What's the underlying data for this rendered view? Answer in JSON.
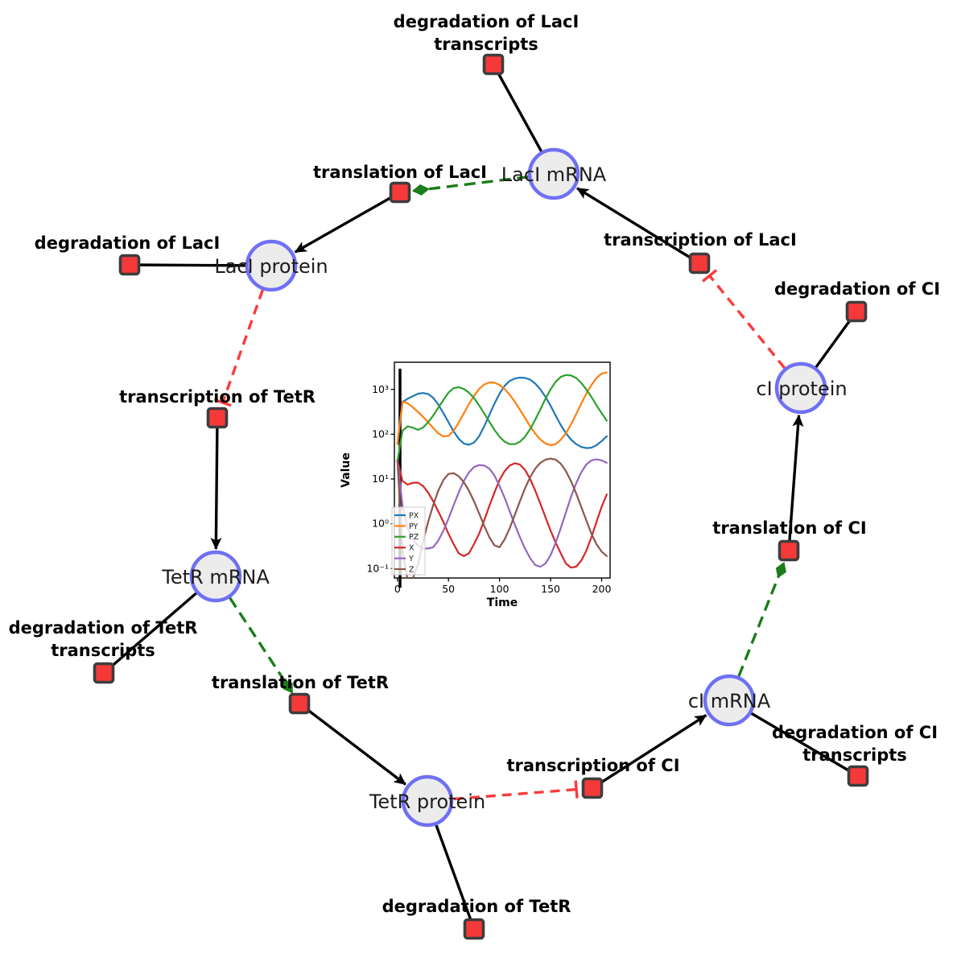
{
  "diagram": {
    "species": [
      {
        "label": "LacI mRNA"
      },
      {
        "label": "LacI protein"
      },
      {
        "label": "TetR mRNA"
      },
      {
        "label": "TetR protein"
      },
      {
        "label": "cI mRNA"
      },
      {
        "label": "cI protein"
      }
    ],
    "reactions": [
      {
        "lines": [
          "degradation of LacI",
          "transcripts"
        ]
      },
      {
        "lines": [
          "translation of LacI"
        ]
      },
      {
        "lines": [
          "degradation of LacI"
        ]
      },
      {
        "lines": [
          "transcription of TetR"
        ]
      },
      {
        "lines": [
          "degradation of TetR",
          "transcripts"
        ]
      },
      {
        "lines": [
          "translation of TetR"
        ]
      },
      {
        "lines": [
          "degradation of TetR"
        ]
      },
      {
        "lines": [
          "transcription of CI"
        ]
      },
      {
        "lines": [
          "degradation of CI",
          "transcripts"
        ]
      },
      {
        "lines": [
          "translation of CI"
        ]
      },
      {
        "lines": [
          "degradation of CI"
        ]
      },
      {
        "lines": [
          "transcription of LacI"
        ]
      }
    ],
    "edges": [
      {
        "from": "LacI mRNA",
        "to": "degradation of LacI transcripts",
        "type": "reactant"
      },
      {
        "from": "LacI mRNA",
        "to": "translation of LacI",
        "type": "modifier"
      },
      {
        "from": "translation of LacI",
        "to": "LacI protein",
        "type": "product"
      },
      {
        "from": "LacI protein",
        "to": "degradation of LacI",
        "type": "reactant"
      },
      {
        "from": "LacI protein",
        "to": "transcription of TetR",
        "type": "inhibition"
      },
      {
        "from": "transcription of TetR",
        "to": "TetR mRNA",
        "type": "product"
      },
      {
        "from": "TetR mRNA",
        "to": "degradation of TetR transcripts",
        "type": "reactant"
      },
      {
        "from": "TetR mRNA",
        "to": "translation of TetR",
        "type": "modifier"
      },
      {
        "from": "translation of TetR",
        "to": "TetR protein",
        "type": "product"
      },
      {
        "from": "TetR protein",
        "to": "degradation of TetR",
        "type": "reactant"
      },
      {
        "from": "TetR protein",
        "to": "transcription of CI",
        "type": "inhibition"
      },
      {
        "from": "transcription of CI",
        "to": "cI mRNA",
        "type": "product"
      },
      {
        "from": "cI mRNA",
        "to": "degradation of CI transcripts",
        "type": "reactant"
      },
      {
        "from": "cI mRNA",
        "to": "translation of CI",
        "type": "modifier"
      },
      {
        "from": "translation of CI",
        "to": "cI protein",
        "type": "product"
      },
      {
        "from": "cI protein",
        "to": "degradation of CI",
        "type": "reactant"
      },
      {
        "from": "cI protein",
        "to": "transcription of LacI",
        "type": "inhibition"
      },
      {
        "from": "transcription of LacI",
        "to": "LacI mRNA",
        "type": "product"
      }
    ],
    "colors": {
      "species_fill": "#ececec",
      "species_border": "#6f70f4",
      "reaction_fill": "#f53939",
      "reaction_border": "#3d3d3d",
      "reactant_product_edge": "#000000",
      "modifier_edge": "#1a7d1a",
      "inhibition_edge": "#fb3b3b"
    }
  },
  "chart_data": {
    "type": "line",
    "title": "",
    "xlabel": "Time",
    "ylabel": "Value",
    "grid": false,
    "y_scale": "log",
    "legend_position": "lower left",
    "x_ticks": [
      0,
      50,
      100,
      150,
      200
    ],
    "x_tick_labels": [
      "0",
      "50",
      "100",
      "150",
      "200"
    ],
    "y_tick_labels": [
      "10³",
      "10²",
      "10¹",
      "10⁰",
      "10⁻¹"
    ],
    "x_range": [
      -3,
      208.3
    ],
    "y_log_range": [
      -1.21,
      3.606
    ],
    "annotation_vline_x": 3,
    "x": [
      0,
      5,
      10,
      15,
      20,
      25,
      30,
      35,
      40,
      45,
      50,
      55,
      60,
      65,
      70,
      75,
      80,
      85,
      90,
      95,
      100,
      105,
      110,
      115,
      120,
      125,
      130,
      135,
      140,
      145,
      150,
      155,
      160,
      165,
      170,
      175,
      180,
      185,
      190,
      195,
      200,
      205
    ],
    "series": [
      {
        "name": "PX",
        "color": "#1f77b4",
        "values": [
          60,
          520,
          620,
          700,
          800,
          830,
          790,
          650,
          460,
          295,
          185,
          116,
          79,
          62,
          58,
          65,
          90,
          150,
          270,
          480,
          800,
          1200,
          1550,
          1750,
          1830,
          1800,
          1650,
          1350,
          1000,
          680,
          430,
          260,
          160,
          105,
          76,
          60,
          52,
          49,
          50,
          57,
          70,
          90
        ]
      },
      {
        "name": "PY",
        "color": "#ff7f0e",
        "values": [
          60,
          540,
          490,
          400,
          315,
          245,
          185,
          138,
          105,
          89,
          92,
          120,
          180,
          290,
          470,
          720,
          1020,
          1290,
          1430,
          1410,
          1260,
          1020,
          760,
          530,
          350,
          230,
          150,
          103,
          76,
          62,
          57,
          60,
          75,
          105,
          165,
          280,
          480,
          800,
          1250,
          1800,
          2250,
          2400
        ]
      },
      {
        "name": "PZ",
        "color": "#2ca02c",
        "values": [
          25,
          120,
          150,
          140,
          125,
          140,
          185,
          260,
          390,
          580,
          850,
          1070,
          1120,
          1020,
          850,
          640,
          440,
          290,
          190,
          125,
          88,
          68,
          60,
          60,
          68,
          88,
          130,
          210,
          360,
          620,
          1000,
          1480,
          1900,
          2100,
          2050,
          1800,
          1400,
          1000,
          680,
          440,
          295,
          200
        ]
      },
      {
        "name": "X",
        "color": "#d62728",
        "values": [
          26,
          9,
          7.5,
          8.2,
          8.3,
          7,
          5,
          3.2,
          1.9,
          1.1,
          0.6,
          0.35,
          0.22,
          0.19,
          0.22,
          0.35,
          0.6,
          1.2,
          2.5,
          5,
          9.5,
          15,
          20,
          22.5,
          21,
          16,
          10,
          5.5,
          2.8,
          1.4,
          0.7,
          0.38,
          0.22,
          0.13,
          0.105,
          0.11,
          0.15,
          0.25,
          0.5,
          1.1,
          2.4,
          4.5
        ]
      },
      {
        "name": "Y",
        "color": "#9467bd",
        "values": [
          26,
          2.5,
          0.8,
          0.45,
          0.33,
          0.28,
          0.28,
          0.3,
          0.42,
          0.7,
          1.3,
          2.6,
          5,
          9,
          14,
          18.5,
          20.5,
          20,
          17,
          12,
          7,
          3.8,
          1.9,
          0.95,
          0.5,
          0.28,
          0.17,
          0.12,
          0.11,
          0.13,
          0.2,
          0.38,
          0.8,
          1.8,
          4,
          8,
          14,
          21,
          26,
          27.5,
          26,
          23
        ]
      },
      {
        "name": "Z",
        "color": "#8c564b",
        "values": [
          26,
          0.25,
          0.055,
          0.06,
          0.12,
          0.4,
          1.1,
          2.6,
          5.5,
          9.5,
          13,
          13.5,
          11.5,
          8.5,
          5.5,
          3.2,
          1.7,
          0.9,
          0.5,
          0.33,
          0.3,
          0.45,
          0.8,
          1.6,
          3.2,
          6.2,
          11,
          17,
          23,
          27,
          28.5,
          27,
          22,
          15,
          9,
          4.8,
          2.4,
          1.2,
          0.6,
          0.35,
          0.24,
          0.19
        ]
      }
    ]
  }
}
